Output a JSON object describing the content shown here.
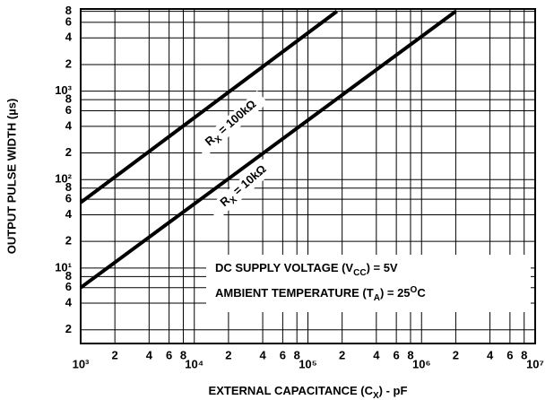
{
  "chart_data": {
    "type": "line",
    "x_label": [
      "EXTERNAL CAPACITANCE (C",
      "X",
      ") - pF"
    ],
    "y_label": "OUTPUT PULSE WIDTH (µs)",
    "log_x": true,
    "log_y": true,
    "grid": true,
    "color": "#000000",
    "xlim": [
      1000,
      10000000
    ],
    "ylim": [
      1.4,
      8500
    ],
    "xticks": [
      {
        "value": 1000,
        "label": "10³"
      },
      {
        "value": 2000,
        "label": "2"
      },
      {
        "value": 4000,
        "label": "4"
      },
      {
        "value": 6000,
        "label": "6"
      },
      {
        "value": 8000,
        "label": "8"
      },
      {
        "value": 10000,
        "label": "10⁴"
      },
      {
        "value": 20000,
        "label": "2"
      },
      {
        "value": 40000,
        "label": "4"
      },
      {
        "value": 60000,
        "label": "6"
      },
      {
        "value": 80000,
        "label": "8"
      },
      {
        "value": 100000,
        "label": "10⁵"
      },
      {
        "value": 200000,
        "label": "2"
      },
      {
        "value": 400000,
        "label": "4"
      },
      {
        "value": 600000,
        "label": "6"
      },
      {
        "value": 800000,
        "label": "8"
      },
      {
        "value": 1000000,
        "label": "10⁶"
      },
      {
        "value": 2000000,
        "label": "2"
      },
      {
        "value": 4000000,
        "label": "4"
      },
      {
        "value": 6000000,
        "label": "6"
      },
      {
        "value": 8000000,
        "label": "8"
      },
      {
        "value": 10000000,
        "label": "10⁷"
      }
    ],
    "yticks": [
      2,
      4,
      6,
      8,
      {
        "value": 10,
        "label": "10¹"
      },
      {
        "value": 20,
        "label": "2"
      },
      {
        "value": 40,
        "label": "4"
      },
      {
        "value": 60,
        "label": "6"
      },
      {
        "value": 80,
        "label": "8"
      },
      {
        "value": 100,
        "label": "10²"
      },
      {
        "value": 200,
        "label": "2"
      },
      {
        "value": 400,
        "label": "4"
      },
      {
        "value": 600,
        "label": "6"
      },
      {
        "value": 800,
        "label": "8"
      },
      {
        "value": 1000,
        "label": "10³"
      },
      {
        "value": 2000,
        "label": "2"
      },
      {
        "value": 4000,
        "label": "4"
      },
      {
        "value": 6000,
        "label": "6"
      },
      {
        "value": 8000,
        "label": "8"
      }
    ],
    "series": [
      {
        "x": [
          1000,
          180000
        ],
        "values": [
          55,
          8000
        ]
      },
      {
        "x": [
          1000,
          2000000
        ],
        "values": [
          6,
          8000
        ]
      }
    ],
    "annotations": [
      {
        "parts": [
          "R",
          "X",
          " = 100kΩ"
        ]
      },
      {
        "parts": [
          "R",
          "X",
          " = 10kΩ"
        ]
      },
      {
        "parts": [
          "DC SUPPLY VOLTAGE (V",
          "CC",
          ") = 5V"
        ]
      },
      {
        "parts": [
          "AMBIENT TEMPERATURE (T",
          "A",
          ") = 25",
          "O",
          "C"
        ]
      }
    ]
  }
}
